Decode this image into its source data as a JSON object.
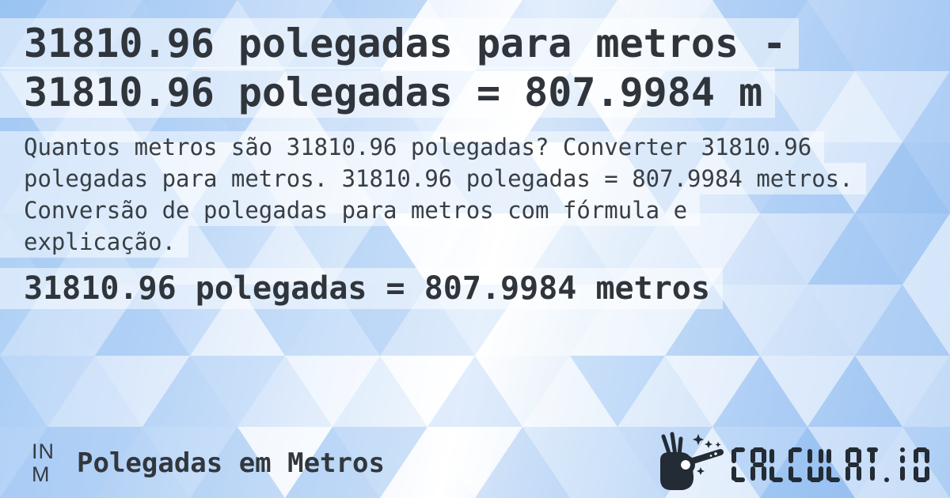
{
  "card": {
    "title": "31810.96 polegadas para metros - 31810.96 polegadas = 807.9984 m",
    "description": "Quantos metros são 31810.96 polegadas? Converter 31810.96 polegadas para metros. 31810.96 polegadas = 807.9984 metros. Conversão de polegadas para metros com fórmula e explicação.",
    "result": "31810.96 polegadas = 807.9984 metros"
  },
  "footer": {
    "unit_badge": {
      "from": "IN",
      "to": "M"
    },
    "category": "Polegadas em Metros",
    "brand": {
      "icon": "magic-wand-icon",
      "text": "CALCULAT.IO"
    }
  },
  "colors": {
    "text_dark": "#2f353b",
    "text_body": "#383e44",
    "brand_dark": "#232b34",
    "pattern_blue": "#9dc4f2",
    "highlight": "rgba(255,255,255,0.5)"
  }
}
